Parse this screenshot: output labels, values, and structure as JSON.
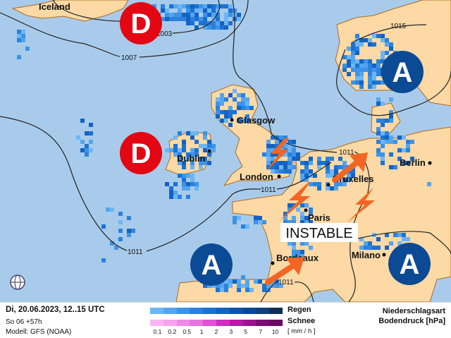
{
  "map": {
    "cities": [
      {
        "name": "Iceland"
      },
      {
        "name": "Glasgow"
      },
      {
        "name": "Dublin"
      },
      {
        "name": "London"
      },
      {
        "name": "Bruxelles"
      },
      {
        "name": "Paris"
      },
      {
        "name": "Bordeaux"
      },
      {
        "name": "Berlin"
      },
      {
        "name": "Milano"
      }
    ],
    "isobar_labels": [
      "1003",
      "1007",
      "1015",
      "1011",
      "1011",
      "1011",
      "1011"
    ],
    "pressure_systems": [
      {
        "type": "low",
        "letter": "D",
        "color": "#e30613"
      },
      {
        "type": "low",
        "letter": "D",
        "color": "#e30613"
      },
      {
        "type": "high",
        "letter": "A",
        "color": "#0b4a94"
      },
      {
        "type": "high",
        "letter": "A",
        "color": "#0b4a94"
      },
      {
        "type": "high",
        "letter": "A",
        "color": "#0b4a94"
      }
    ],
    "banner": "INSTABLE",
    "icons": [
      "lightning-icon",
      "lightning-icon",
      "lightning-icon",
      "arrow-icon",
      "arrow-icon",
      "globe-icon"
    ],
    "colors": {
      "ocean": "#a9cbeb",
      "land": "#fcd9a5",
      "coast": "#b06a1a",
      "storm": "#f26522"
    }
  },
  "legend": {
    "datetime": "Di, 20.06.2023, 12..15 UTC",
    "run": "So 06 +57h",
    "model": "Modell: GFS (NOAA)",
    "rain_label": "Regen",
    "snow_label": "Schnee",
    "unit": "[ mm / h ]",
    "ticks": [
      "0.1",
      "0.2",
      "0.5",
      "1",
      "2",
      "3",
      "5",
      "7",
      "10"
    ],
    "title1": "Niederschlagsart",
    "title2": "Bodendruck [hPa]",
    "rain_colors": [
      "#6cb6f6",
      "#55a5ee",
      "#3d93e8",
      "#2a82de",
      "#1c72d2",
      "#1462c2",
      "#0e52ae",
      "#0c4797",
      "#103f7a",
      "#0d2f55"
    ],
    "snow_colors": [
      "#fab6f4",
      "#f7a2ef",
      "#f08ae8",
      "#e874e2",
      "#e050d9",
      "#cd2fc2",
      "#b51aaa",
      "#9c1292",
      "#7d0a75",
      "#6a0863"
    ]
  }
}
